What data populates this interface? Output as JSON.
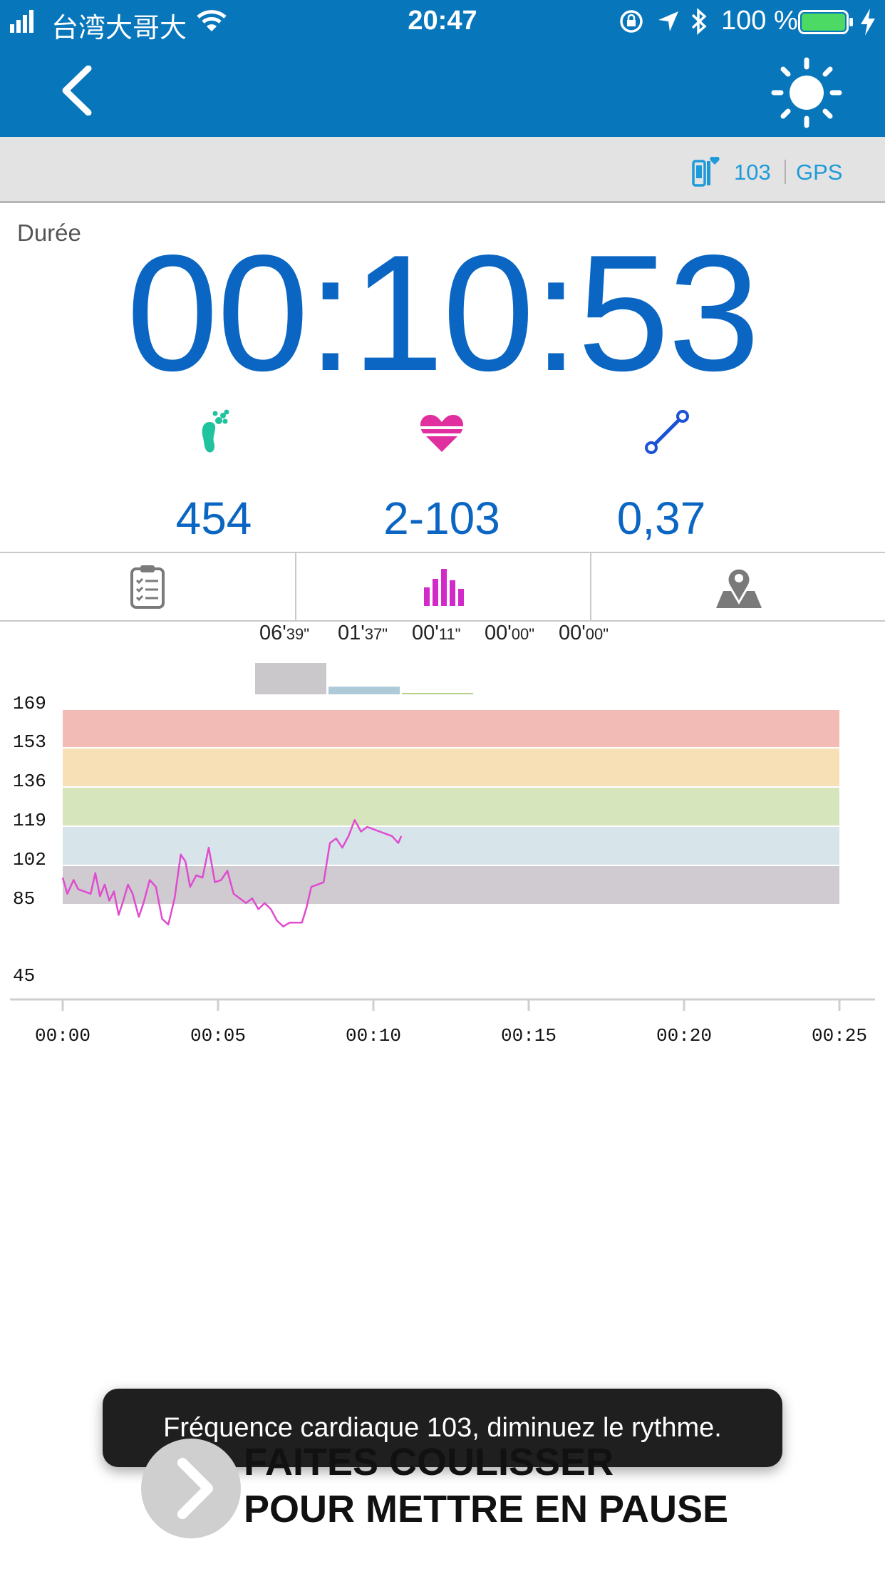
{
  "status_bar": {
    "carrier": "台湾大哥大",
    "time": "20:47",
    "battery": "100 %",
    "colors": {
      "bar": "#0776bb",
      "battery_fill": "#4cd964"
    }
  },
  "nav": {
    "back_icon": "chevron-left-icon",
    "brightness_icon": "sun-icon"
  },
  "sensors": {
    "heart_rate_value": "103",
    "gps_label": "GPS"
  },
  "main": {
    "duration_label": "Durée",
    "timer": "00:10:53"
  },
  "metrics": [
    {
      "icon": "footprint-icon",
      "value": "454",
      "color": "#1fc39e"
    },
    {
      "icon": "heart-icon",
      "value": "2-103",
      "color": "#e0309f"
    },
    {
      "icon": "distance-icon",
      "value": "0,37",
      "color": "#1b52d6"
    }
  ],
  "tabs": [
    {
      "icon": "clipboard-icon",
      "active": false
    },
    {
      "icon": "bar-chart-icon",
      "active": true
    },
    {
      "icon": "map-pin-icon",
      "active": false
    }
  ],
  "zone_times": [
    {
      "min": "06'",
      "sec": "39\""
    },
    {
      "min": "01'",
      "sec": "37\""
    },
    {
      "min": "00'",
      "sec": "11\""
    },
    {
      "min": "00'",
      "sec": "00\""
    },
    {
      "min": "00'",
      "sec": "00\""
    }
  ],
  "chart_data": {
    "type": "line",
    "ylim": [
      45,
      169
    ],
    "y_ticks": [
      "169",
      "153",
      "136",
      "119",
      "102",
      "85",
      "45"
    ],
    "xlim": [
      0,
      25
    ],
    "x_ticks": [
      "00:00",
      "00:05",
      "00:10",
      "00:15",
      "00:20",
      "00:25"
    ],
    "zones": [
      {
        "from": 153,
        "to": 169,
        "color": "#f3bbb5"
      },
      {
        "from": 136,
        "to": 153,
        "color": "#f8e0b6"
      },
      {
        "from": 119,
        "to": 136,
        "color": "#d7e5bd"
      },
      {
        "from": 102,
        "to": 119,
        "color": "#d7e4ea"
      },
      {
        "from": 85,
        "to": 102,
        "color": "#cfcbd0"
      }
    ],
    "zone_bars": [
      {
        "value": 6.65,
        "color": "#cbc8cc"
      },
      {
        "value": 1.62,
        "color": "#aecad9"
      },
      {
        "value": 0.18,
        "color": "#b7d28e"
      },
      {
        "value": 0,
        "color": "#f1d39a"
      },
      {
        "value": 0,
        "color": "#eba39a"
      }
    ],
    "series": [
      {
        "color": "#e04bd0",
        "x": [
          0.0,
          0.15,
          0.35,
          0.5,
          0.7,
          0.9,
          1.05,
          1.2,
          1.35,
          1.5,
          1.65,
          1.8,
          1.95,
          2.1,
          2.25,
          2.45,
          2.6,
          2.8,
          3.0,
          3.2,
          3.4,
          3.6,
          3.8,
          3.95,
          4.1,
          4.3,
          4.5,
          4.7,
          4.9,
          5.1,
          5.3,
          5.5,
          5.7,
          5.9,
          6.1,
          6.3,
          6.5,
          6.7,
          6.9,
          7.1,
          7.3,
          7.5,
          7.7,
          7.85,
          8.0,
          8.2,
          8.4,
          8.6,
          8.8,
          9.0,
          9.2,
          9.4,
          9.6,
          9.8,
          10.0,
          10.2,
          10.4,
          10.6,
          10.8,
          10.9
        ],
        "values": [
          97,
          90,
          96,
          92,
          91,
          90,
          99,
          89,
          94,
          87,
          91,
          80,
          87,
          94,
          90,
          79,
          86,
          96,
          93,
          78,
          75,
          88,
          107,
          104,
          93,
          98,
          97,
          110,
          95,
          96,
          100,
          90,
          88,
          86,
          88,
          83,
          86,
          83,
          77,
          74,
          76,
          76,
          76,
          84,
          93,
          94,
          95,
          112,
          114,
          110,
          115,
          122,
          117,
          119,
          118,
          117,
          116,
          115,
          112,
          115
        ]
      }
    ]
  },
  "toast": {
    "text": "Fréquence cardiaque 103, diminuez le rythme."
  },
  "slide": {
    "line1": "FAITES COULISSER",
    "line2": "POUR METTRE EN PAUSE"
  }
}
